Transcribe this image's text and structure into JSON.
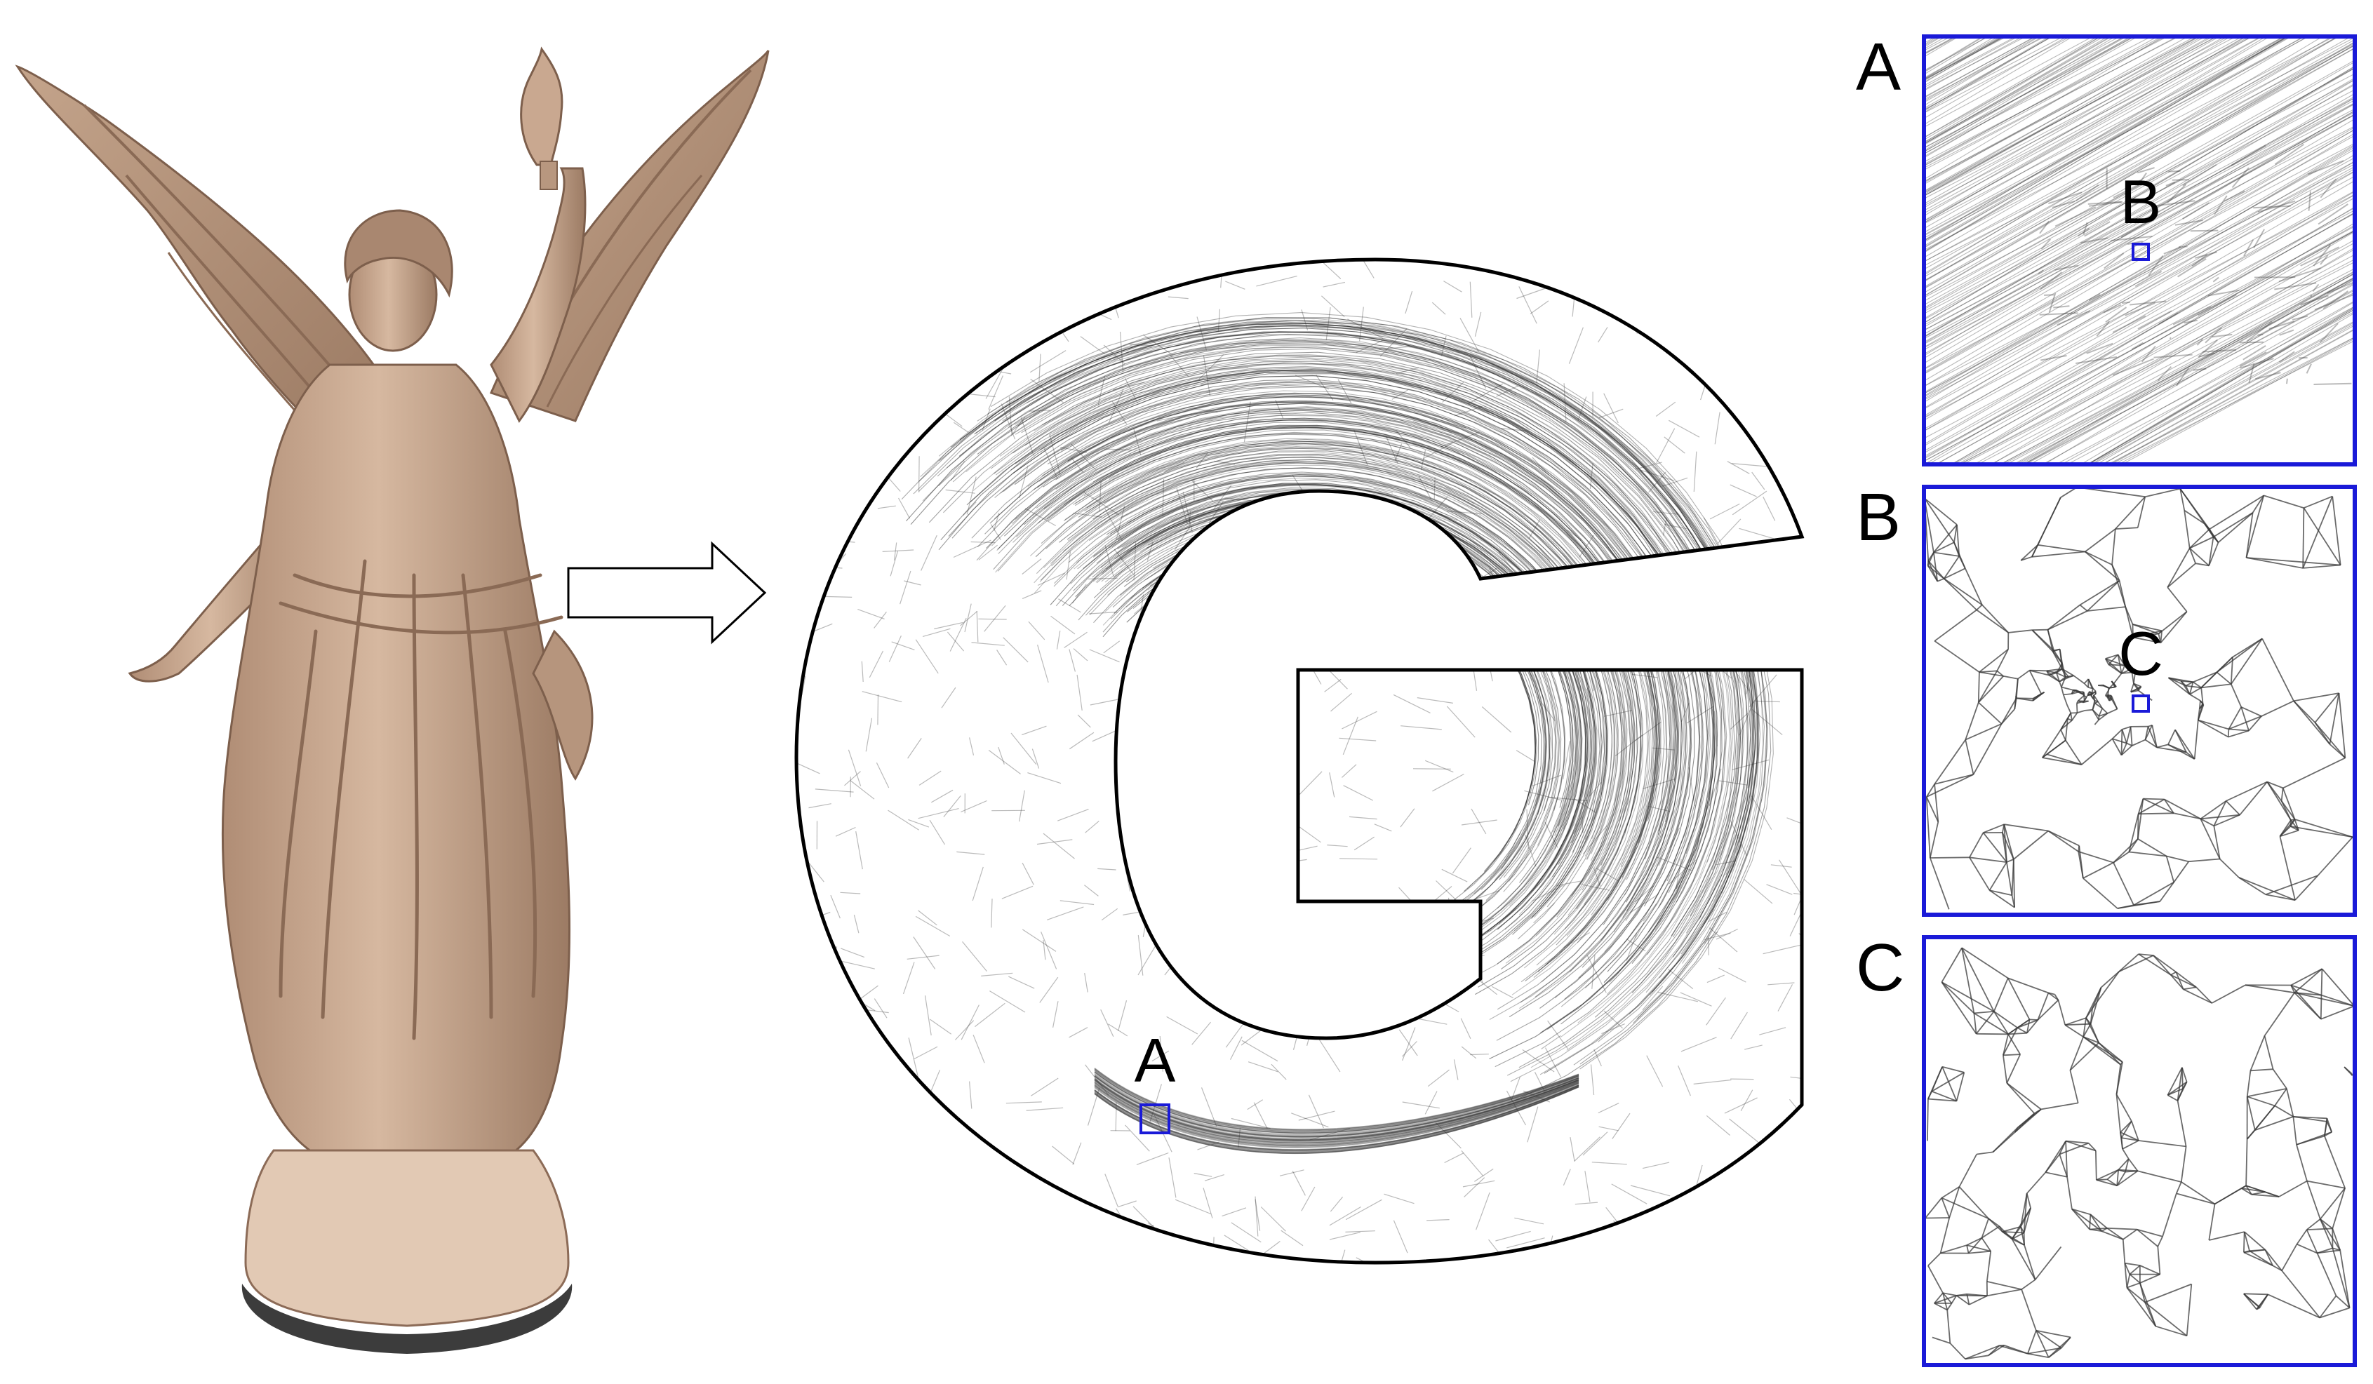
{
  "figure": {
    "main_marker_label": "A",
    "insets": [
      {
        "id": "A",
        "label": "A",
        "marker_label": "B"
      },
      {
        "id": "B",
        "label": "B",
        "marker_label": "C"
      },
      {
        "id": "C",
        "label": "C"
      }
    ]
  },
  "colors": {
    "statue": "#c8a991",
    "statue_shadow": "#8c6b57",
    "statue_base": "#e8d2bf",
    "statue_rim": "#3a3a3a",
    "outline": "#000000",
    "mesh": "#555555",
    "inset_border": "#1a1ad8",
    "marker": "#1a1ad8"
  }
}
